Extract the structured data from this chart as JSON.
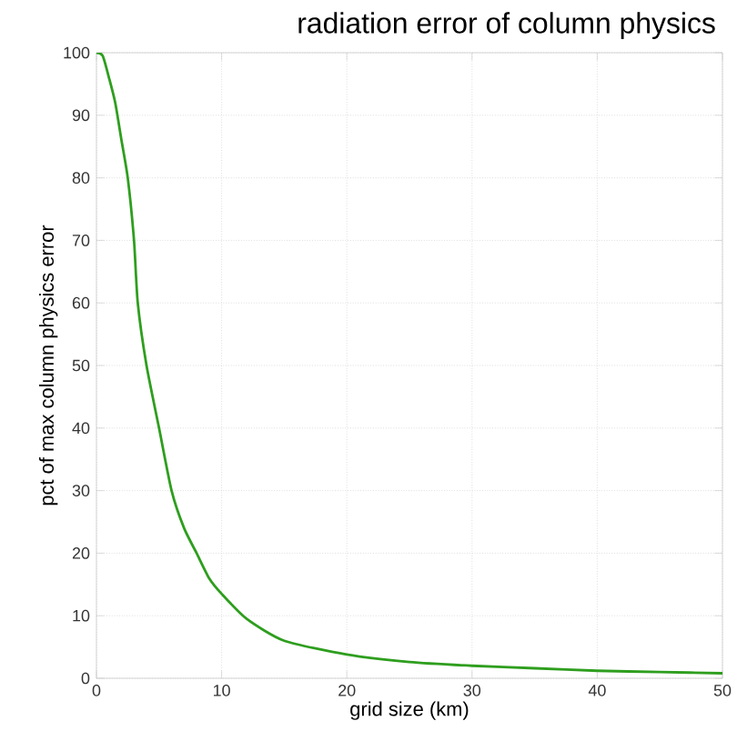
{
  "chart_data": {
    "type": "line",
    "title": "radiation error of column physics",
    "xlabel": "grid size (km)",
    "ylabel": "pct of max column physics error",
    "x": [
      0,
      0.5,
      1,
      1.5,
      2,
      2.5,
      3,
      3.3,
      4,
      5,
      6,
      7,
      8,
      9,
      10,
      12,
      15,
      20,
      25,
      30,
      35,
      40,
      45,
      50
    ],
    "series": [
      {
        "color": "#2e9e1e",
        "values": [
          100,
          99.5,
          96,
          92,
          86,
          80,
          70,
          60,
          50,
          40,
          30,
          24,
          20,
          16,
          13.5,
          9.5,
          6,
          3.8,
          2.6,
          2,
          1.6,
          1.2,
          1,
          0.8
        ]
      }
    ],
    "xlim": [
      0,
      50
    ],
    "ylim": [
      0,
      100
    ],
    "xticks": [
      0,
      10,
      20,
      30,
      40,
      50
    ],
    "yticks": [
      0,
      10,
      20,
      30,
      40,
      50,
      60,
      70,
      80,
      90,
      100
    ],
    "grid": true,
    "marker": "none",
    "line_style": "solid"
  }
}
